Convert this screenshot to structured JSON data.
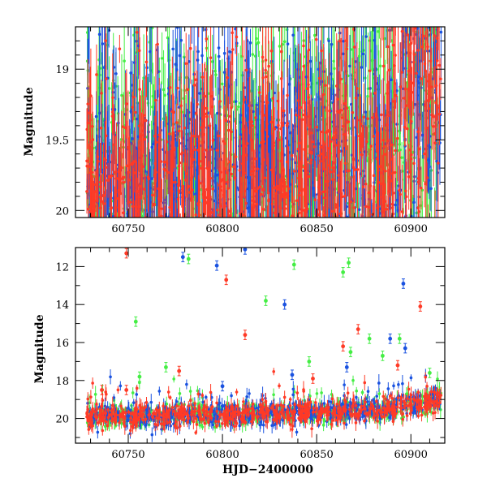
{
  "colors": {
    "green": "#44ee44",
    "blue": "#1a52e0",
    "red": "#ff3a26",
    "axis": "#000000"
  },
  "chart_data": [
    {
      "type": "scatter",
      "panel": "top",
      "title": "",
      "xlabel": "",
      "ylabel": "Magnitude",
      "xlim": [
        60722,
        60918
      ],
      "ylim": [
        20.05,
        18.7
      ],
      "y_inverted": true,
      "xticks": [
        60750,
        60800,
        60850,
        60900
      ],
      "yticks": [
        19,
        19.5,
        20
      ],
      "ytick_labels": [
        "19",
        "19.5",
        "20"
      ],
      "legend": "none",
      "grid": false,
      "series": [
        {
          "color": "green",
          "x_range": [
            60728,
            60916
          ],
          "mag_trend": [
            [
              60728,
              19.85
            ],
            [
              60800,
              19.8
            ],
            [
              60850,
              19.72
            ],
            [
              60890,
              19.6
            ],
            [
              60916,
              19.0
            ]
          ],
          "scatter": 0.5,
          "error_bars": true
        },
        {
          "color": "blue",
          "x_range": [
            60728,
            60916
          ],
          "mag_trend": [
            [
              60728,
              19.85
            ],
            [
              60800,
              19.8
            ],
            [
              60850,
              19.72
            ],
            [
              60890,
              19.6
            ],
            [
              60916,
              19.0
            ]
          ],
          "scatter": 0.45,
          "error_bars": true
        },
        {
          "color": "red",
          "x_range": [
            60728,
            60916
          ],
          "mag_trend": [
            [
              60728,
              19.85
            ],
            [
              60800,
              19.8
            ],
            [
              60850,
              19.72
            ],
            [
              60890,
              19.55
            ],
            [
              60916,
              19.0
            ]
          ],
          "scatter": 0.35,
          "error_bars": true
        }
      ]
    },
    {
      "type": "scatter",
      "panel": "bottom",
      "title": "",
      "xlabel": "HJD−2400000",
      "ylabel": "Magnitude",
      "xlim": [
        60722,
        60918
      ],
      "ylim": [
        21.3,
        11
      ],
      "y_inverted": true,
      "xticks": [
        60750,
        60800,
        60850,
        60900
      ],
      "yticks": [
        12,
        14,
        16,
        18,
        20
      ],
      "ytick_labels": [
        "12",
        "14",
        "16",
        "18",
        "20"
      ],
      "legend": "none",
      "grid": false,
      "series": [
        {
          "color": "green",
          "mag_trend": [
            [
              60728,
              19.9
            ],
            [
              60800,
              19.8
            ],
            [
              60850,
              19.7
            ],
            [
              60890,
              19.5
            ],
            [
              60916,
              19.0
            ]
          ],
          "outliers": [
            [
              60754,
              14.9
            ],
            [
              60782,
              11.6
            ],
            [
              60823,
              13.8
            ],
            [
              60838,
              11.9
            ],
            [
              60864,
              12.3
            ],
            [
              60867,
              11.8
            ],
            [
              60878,
              15.8
            ],
            [
              60885,
              16.7
            ],
            [
              60894,
              15.8
            ],
            [
              60910,
              17.6
            ],
            [
              60756,
              17.8
            ],
            [
              60770,
              17.3
            ],
            [
              60846,
              17.0
            ],
            [
              60868,
              16.5
            ]
          ]
        },
        {
          "color": "blue",
          "mag_trend": [
            [
              60728,
              19.9
            ],
            [
              60800,
              19.8
            ],
            [
              60850,
              19.7
            ],
            [
              60890,
              19.5
            ],
            [
              60916,
              19.0
            ]
          ],
          "outliers": [
            [
              60779,
              11.5
            ],
            [
              60797,
              11.95
            ],
            [
              60812,
              11.1
            ],
            [
              60833,
              14.0
            ],
            [
              60896,
              12.9
            ],
            [
              60897,
              16.3
            ],
            [
              60889,
              15.8
            ],
            [
              60866,
              17.3
            ],
            [
              60837,
              17.7
            ],
            [
              60800,
              18.3
            ]
          ]
        },
        {
          "color": "red",
          "mag_trend": [
            [
              60728,
              19.9
            ],
            [
              60800,
              19.8
            ],
            [
              60850,
              19.7
            ],
            [
              60890,
              19.45
            ],
            [
              60916,
              19.0
            ]
          ],
          "outliers": [
            [
              60749,
              11.3
            ],
            [
              60802,
              12.7
            ],
            [
              60812,
              15.6
            ],
            [
              60872,
              15.3
            ],
            [
              60864,
              16.2
            ],
            [
              60905,
              14.1
            ],
            [
              60777,
              17.5
            ],
            [
              60848,
              17.9
            ],
            [
              60749,
              18.5
            ],
            [
              60893,
              17.2
            ],
            [
              60736,
              18.5
            ]
          ]
        }
      ]
    }
  ]
}
